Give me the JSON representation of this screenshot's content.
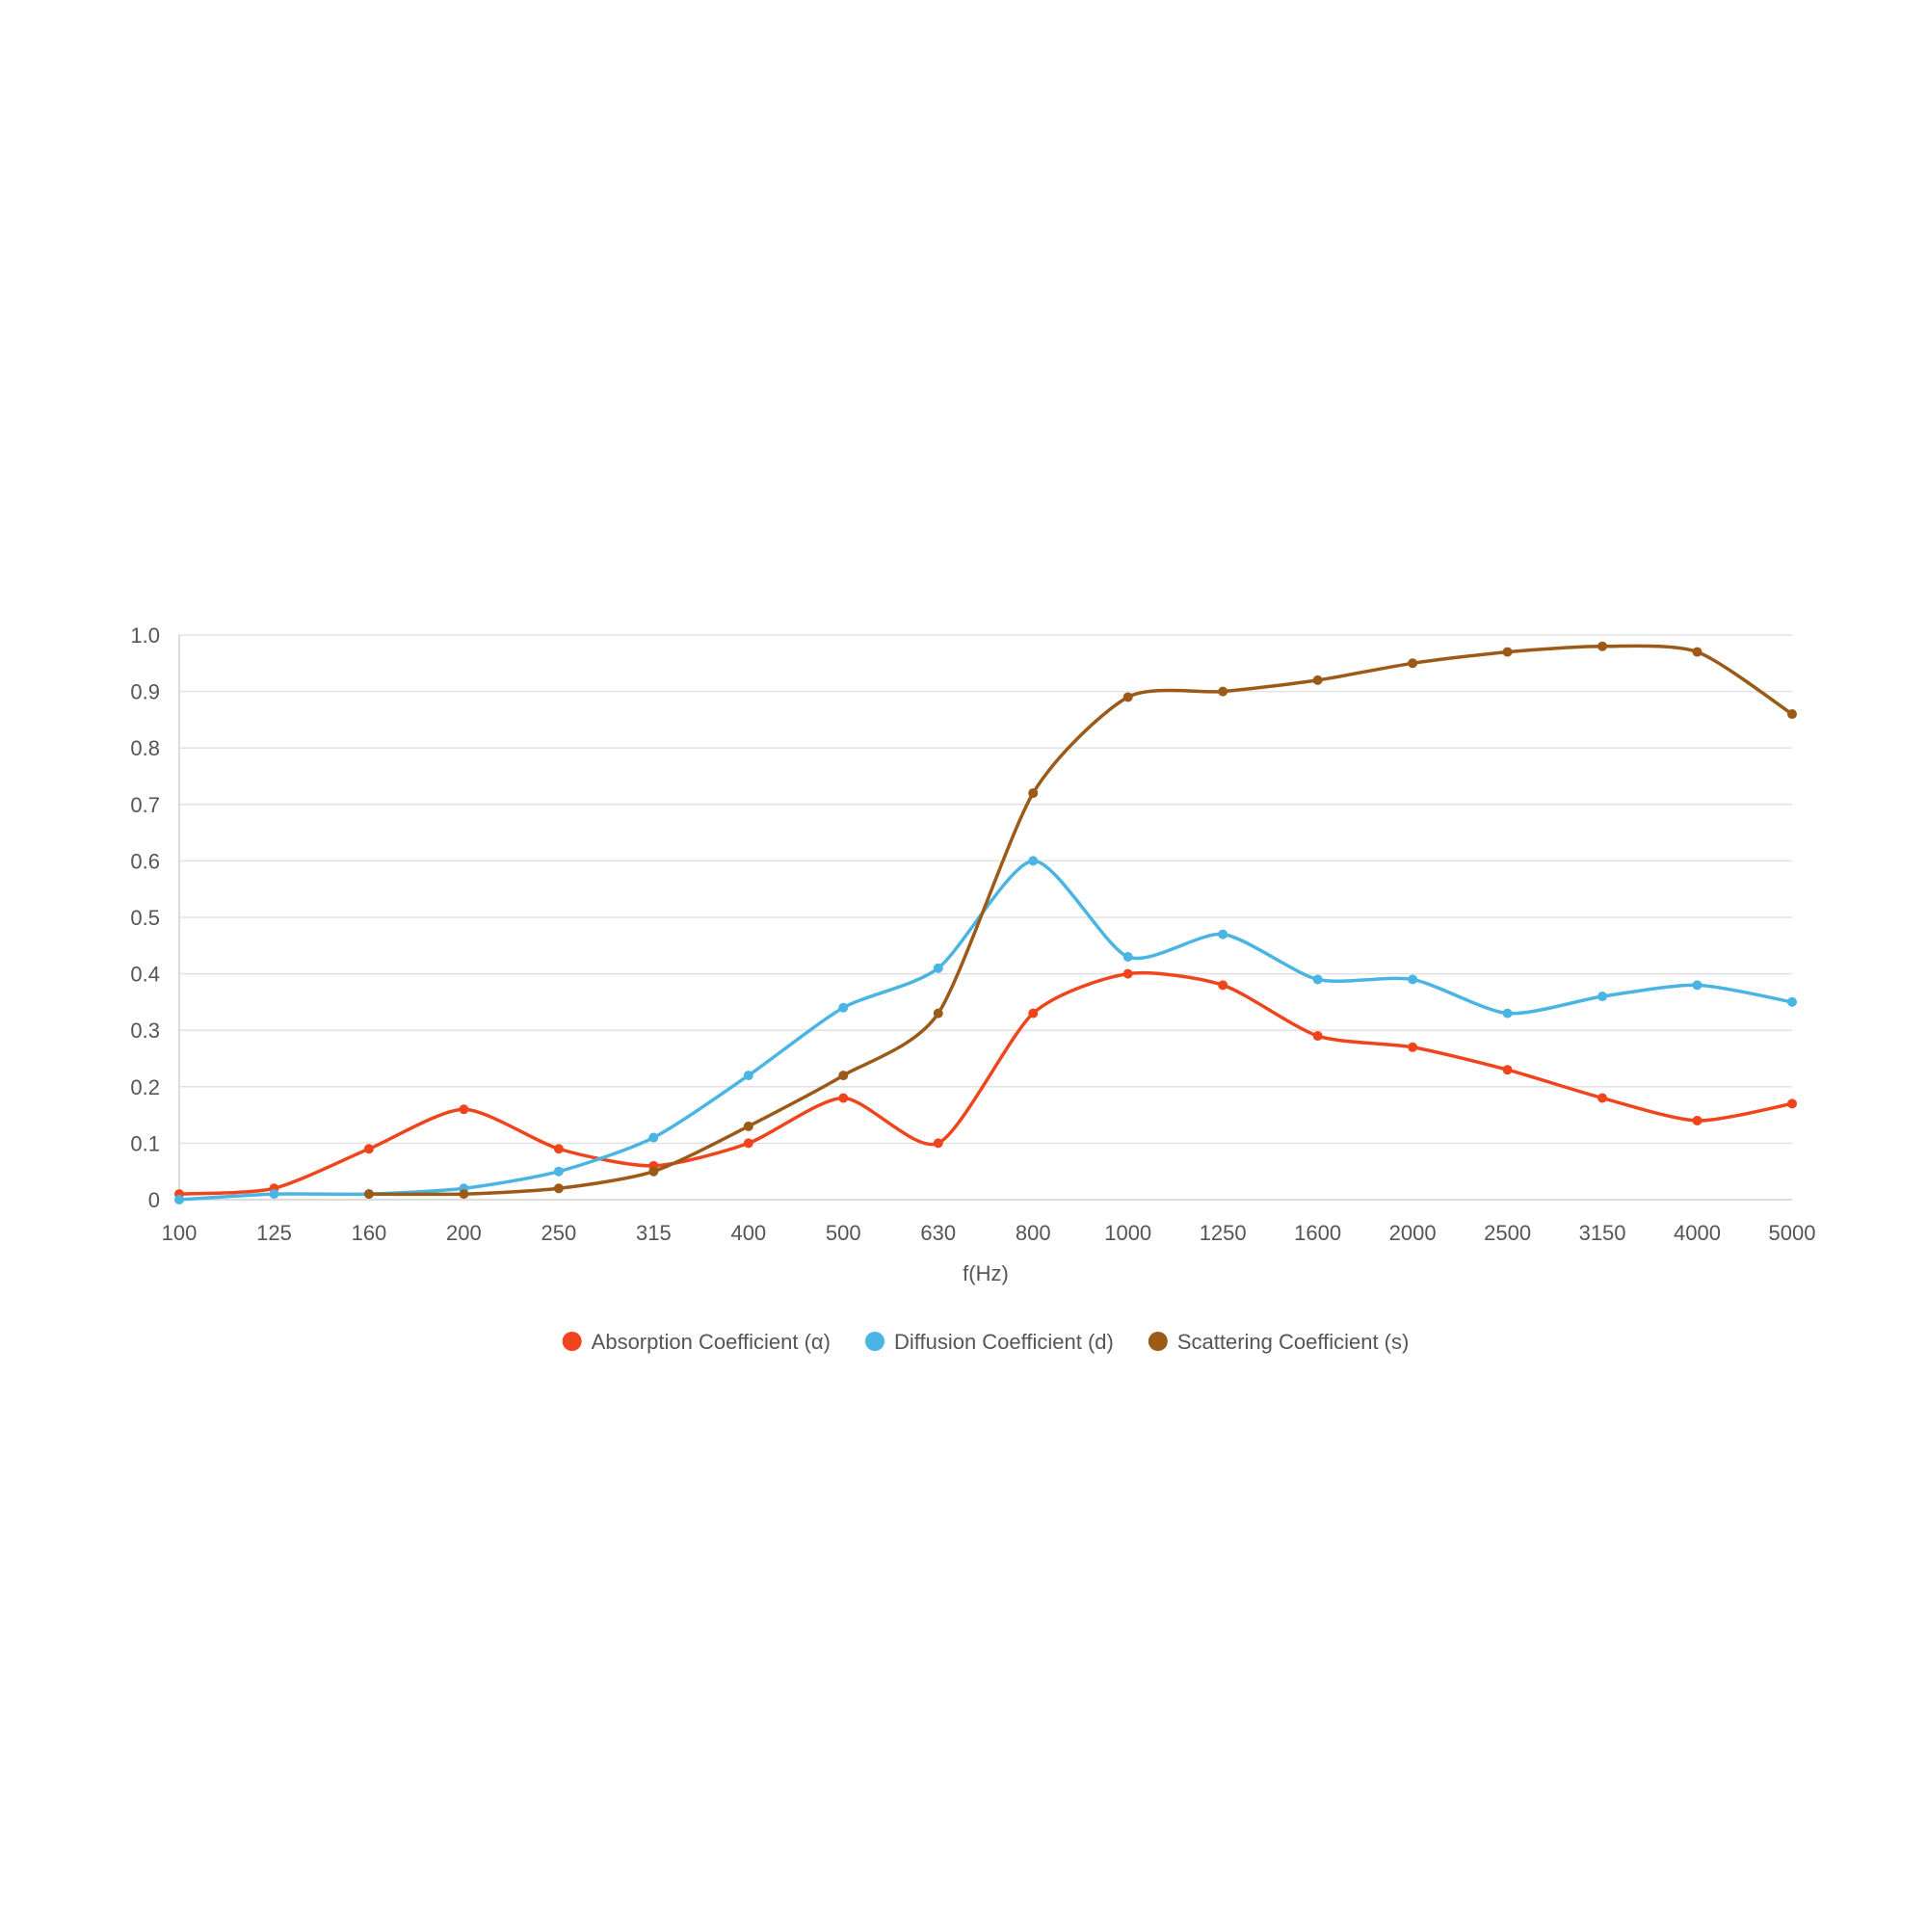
{
  "chart_data": {
    "type": "line",
    "title": "",
    "xlabel": "f(Hz)",
    "ylabel": "",
    "categories": [
      "100",
      "125",
      "160",
      "200",
      "250",
      "315",
      "400",
      "500",
      "630",
      "800",
      "1000",
      "1250",
      "1600",
      "2000",
      "2500",
      "3150",
      "4000",
      "5000"
    ],
    "y_ticks": [
      "0",
      "0.1",
      "0.2",
      "0.3",
      "0.4",
      "0.5",
      "0.6",
      "0.7",
      "0.8",
      "0.9",
      "1.0"
    ],
    "ylim": [
      0,
      1.0
    ],
    "grid": true,
    "legend_position": "bottom-center",
    "series": [
      {
        "name": "Absorption Coefficient (α)",
        "color": "#f0451c",
        "values": [
          0.01,
          0.02,
          0.09,
          0.16,
          0.09,
          0.06,
          0.1,
          0.18,
          0.1,
          0.33,
          0.4,
          0.38,
          0.29,
          0.27,
          0.23,
          0.18,
          0.14,
          0.17
        ]
      },
      {
        "name": "Diffusion Coefficient (d)",
        "color": "#4ab5e3",
        "values": [
          0.0,
          0.01,
          0.01,
          0.02,
          0.05,
          0.11,
          0.22,
          0.34,
          0.41,
          0.6,
          0.43,
          0.47,
          0.39,
          0.39,
          0.33,
          0.36,
          0.38,
          0.35
        ]
      },
      {
        "name": "Scattering Coefficient (s)",
        "color": "#9b5a17",
        "values": [
          null,
          null,
          0.01,
          0.01,
          0.02,
          0.05,
          0.13,
          0.22,
          0.33,
          0.72,
          0.89,
          0.9,
          0.92,
          0.95,
          0.97,
          0.98,
          0.97,
          0.86
        ]
      }
    ]
  }
}
